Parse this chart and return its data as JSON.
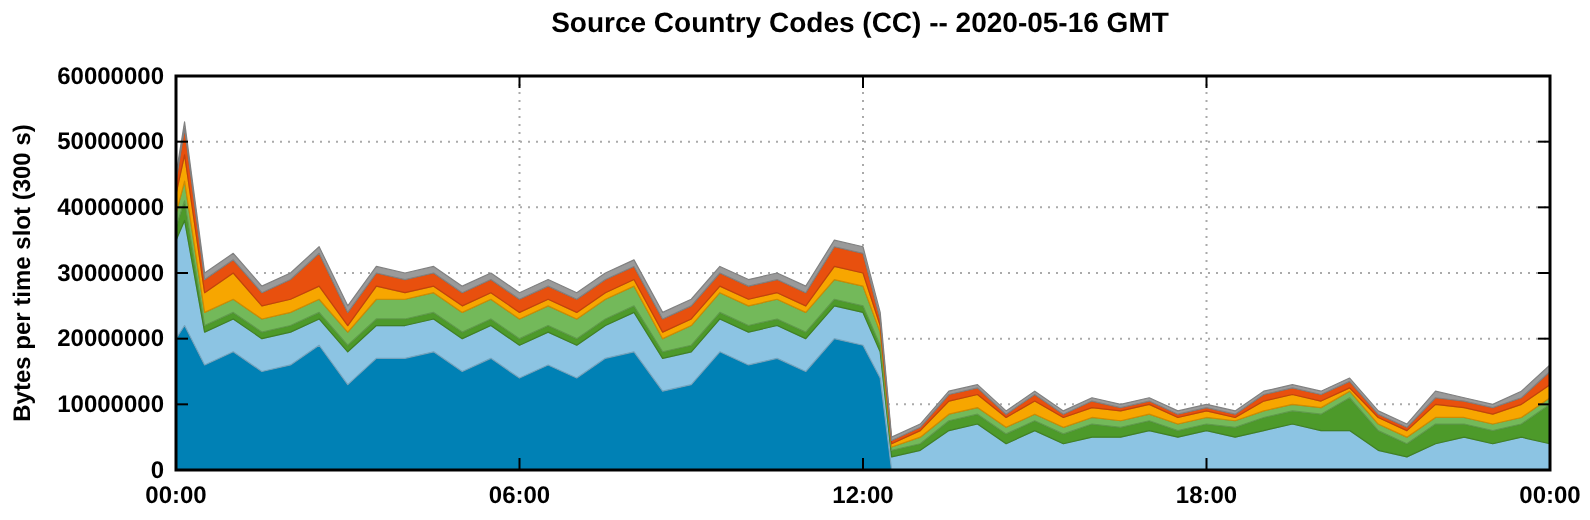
{
  "chart_data": {
    "type": "area",
    "stacked": true,
    "title": "Source Country Codes (CC) -- 2020-05-16 GMT",
    "ylabel": "Bytes per time slot (300 s)",
    "x": [
      0,
      0.15,
      0.5,
      1,
      1.5,
      2,
      2.5,
      3,
      3.5,
      4,
      4.5,
      5,
      5.5,
      6,
      6.5,
      7,
      7.5,
      8,
      8.5,
      9,
      9.5,
      10,
      10.5,
      11,
      11.5,
      12,
      12.3,
      12.5,
      13,
      13.5,
      14,
      14.5,
      15,
      15.5,
      16,
      16.5,
      17,
      17.5,
      18,
      18.5,
      19,
      19.5,
      20,
      20.5,
      21,
      21.5,
      22,
      22.5,
      23,
      23.5,
      24
    ],
    "xlim": [
      0,
      24
    ],
    "xticks": [
      {
        "value": 0,
        "label": "00:00"
      },
      {
        "value": 6,
        "label": "06:00"
      },
      {
        "value": 12,
        "label": "12:00"
      },
      {
        "value": 18,
        "label": "18:00"
      },
      {
        "value": 24,
        "label": "00:00"
      }
    ],
    "ylim": [
      0,
      60000000
    ],
    "yticks": [
      0,
      10000000,
      20000000,
      30000000,
      40000000,
      50000000,
      60000000
    ],
    "grid": true,
    "series": [
      {
        "color": "#0081b5",
        "values": [
          20000000,
          22000000,
          16000000,
          18000000,
          15000000,
          16000000,
          19000000,
          13000000,
          17000000,
          17000000,
          18000000,
          15000000,
          17000000,
          14000000,
          16000000,
          14000000,
          17000000,
          18000000,
          12000000,
          13000000,
          18000000,
          16000000,
          17000000,
          15000000,
          20000000,
          19000000,
          14000000,
          0,
          0,
          0,
          0,
          0,
          0,
          0,
          0,
          0,
          0,
          0,
          0,
          0,
          0,
          0,
          0,
          0,
          0,
          0,
          0,
          0,
          0,
          0,
          0
        ]
      },
      {
        "color": "#8cc4e3",
        "values": [
          15000000,
          16000000,
          5000000,
          5000000,
          5000000,
          5000000,
          4000000,
          5000000,
          5000000,
          5000000,
          5000000,
          5000000,
          5000000,
          5000000,
          5000000,
          5000000,
          5000000,
          6000000,
          5000000,
          5000000,
          5000000,
          5000000,
          5000000,
          5000000,
          5000000,
          5000000,
          4000000,
          2000000,
          3000000,
          6000000,
          7000000,
          4000000,
          6000000,
          4000000,
          5000000,
          5000000,
          6000000,
          5000000,
          6000000,
          5000000,
          6000000,
          7000000,
          6000000,
          6000000,
          3000000,
          2000000,
          4000000,
          5000000,
          4000000,
          5000000,
          4000000
        ]
      },
      {
        "color": "#4d9a2a",
        "values": [
          2000000,
          3000000,
          1000000,
          1000000,
          1000000,
          1000000,
          1000000,
          1000000,
          1000000,
          1000000,
          1000000,
          1000000,
          1000000,
          1000000,
          1000000,
          1000000,
          1000000,
          1000000,
          1000000,
          1000000,
          1000000,
          1000000,
          1000000,
          1000000,
          1000000,
          1000000,
          1000000,
          1000000,
          1000000,
          1500000,
          1500000,
          1500000,
          1500000,
          1500000,
          2000000,
          1500000,
          1500000,
          1000000,
          1000000,
          1500000,
          2000000,
          2000000,
          2500000,
          5000000,
          3000000,
          2000000,
          3000000,
          2000000,
          2000000,
          2000000,
          6000000
        ]
      },
      {
        "color": "#73b95a",
        "values": [
          2000000,
          3000000,
          2000000,
          2000000,
          2000000,
          2000000,
          2000000,
          2000000,
          3000000,
          3000000,
          3000000,
          3000000,
          3000000,
          3000000,
          3000000,
          3000000,
          3000000,
          3000000,
          2000000,
          3000000,
          3000000,
          3000000,
          3000000,
          3000000,
          3000000,
          3000000,
          2000000,
          500000,
          1000000,
          1000000,
          1000000,
          1000000,
          1000000,
          1000000,
          1000000,
          1000000,
          1000000,
          1000000,
          1000000,
          1000000,
          1000000,
          1000000,
          1000000,
          1000000,
          1000000,
          1000000,
          1000000,
          1000000,
          1000000,
          1000000,
          1000000
        ]
      },
      {
        "color": "#f7a600",
        "values": [
          3000000,
          4000000,
          3000000,
          4000000,
          2000000,
          2000000,
          2000000,
          1000000,
          2000000,
          1000000,
          1000000,
          1000000,
          1000000,
          1000000,
          1000000,
          1000000,
          1000000,
          1000000,
          1000000,
          1000000,
          1000000,
          1000000,
          1000000,
          1000000,
          2000000,
          2000000,
          1000000,
          500000,
          1000000,
          2000000,
          2000000,
          1500000,
          2000000,
          1500000,
          1500000,
          1500000,
          1500000,
          1000000,
          1000000,
          500000,
          1500000,
          1500000,
          1000000,
          500000,
          1000000,
          1000000,
          2000000,
          1500000,
          1500000,
          2000000,
          2000000
        ]
      },
      {
        "color": "#e8500e",
        "values": [
          2000000,
          4000000,
          2000000,
          2000000,
          2000000,
          3000000,
          5000000,
          2000000,
          2000000,
          2000000,
          2000000,
          2000000,
          2000000,
          2000000,
          2000000,
          2000000,
          2000000,
          2000000,
          2000000,
          2000000,
          2000000,
          2000000,
          2000000,
          2000000,
          3000000,
          3000000,
          1000000,
          500000,
          500000,
          1000000,
          1000000,
          500000,
          1000000,
          500000,
          1000000,
          500000,
          500000,
          500000,
          500000,
          500000,
          1000000,
          1000000,
          1000000,
          1000000,
          500000,
          500000,
          1000000,
          1000000,
          1000000,
          1000000,
          2000000
        ]
      },
      {
        "color": "#9a9a9a",
        "values": [
          1000000,
          1000000,
          1000000,
          1000000,
          1000000,
          1000000,
          1000000,
          1000000,
          1000000,
          1000000,
          1000000,
          1000000,
          1000000,
          1000000,
          1000000,
          1000000,
          1000000,
          1000000,
          1000000,
          1000000,
          1000000,
          1000000,
          1000000,
          1000000,
          1000000,
          1000000,
          1000000,
          500000,
          500000,
          500000,
          500000,
          500000,
          500000,
          500000,
          500000,
          500000,
          500000,
          500000,
          500000,
          500000,
          500000,
          500000,
          500000,
          500000,
          500000,
          500000,
          1000000,
          500000,
          500000,
          1000000,
          1000000
        ]
      }
    ]
  }
}
